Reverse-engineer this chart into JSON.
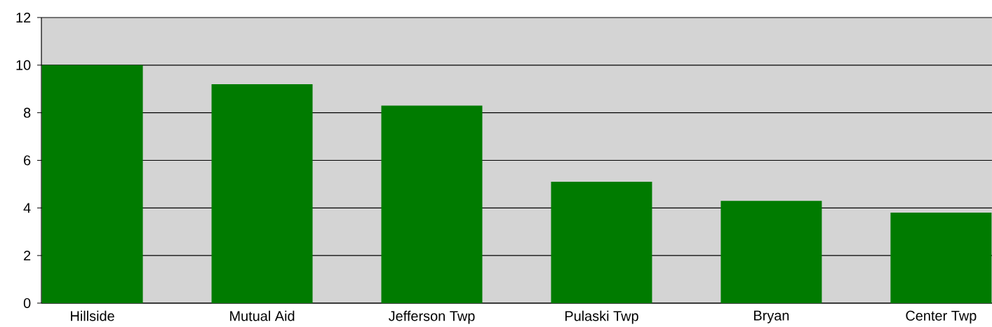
{
  "chart_data": {
    "type": "bar",
    "categories": [
      "Hillside",
      "Mutual Aid",
      "Jefferson Twp",
      "Pulaski Twp",
      "Bryan",
      "Center Twp"
    ],
    "values": [
      10,
      9.2,
      8.3,
      5.1,
      4.3,
      3.8
    ],
    "color": "#007b00",
    "ylim": [
      0,
      12
    ],
    "yticks": [
      0,
      2,
      4,
      6,
      8,
      10,
      12
    ],
    "grid": "y"
  }
}
